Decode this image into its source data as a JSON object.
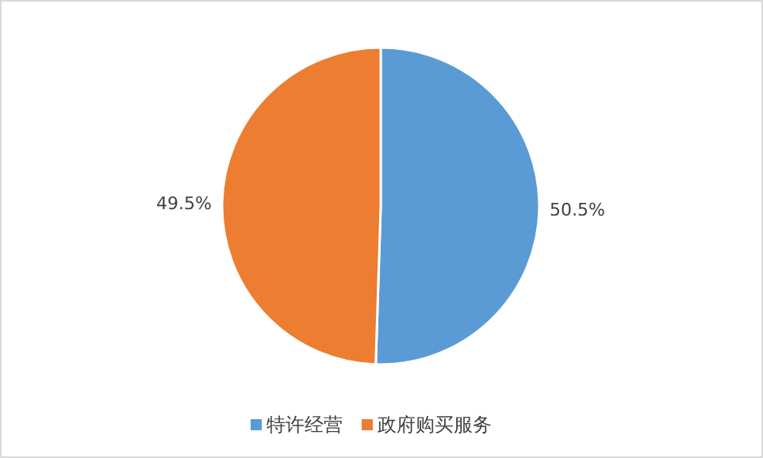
{
  "chart_data": {
    "type": "pie",
    "categories": [
      "特许经营",
      "政府购买服务"
    ],
    "values": [
      50.5,
      49.5
    ],
    "colors": [
      "#5b9bd5",
      "#ed7d31"
    ],
    "value_labels": [
      "50.5%",
      "49.5%"
    ],
    "legend": "bottom"
  }
}
